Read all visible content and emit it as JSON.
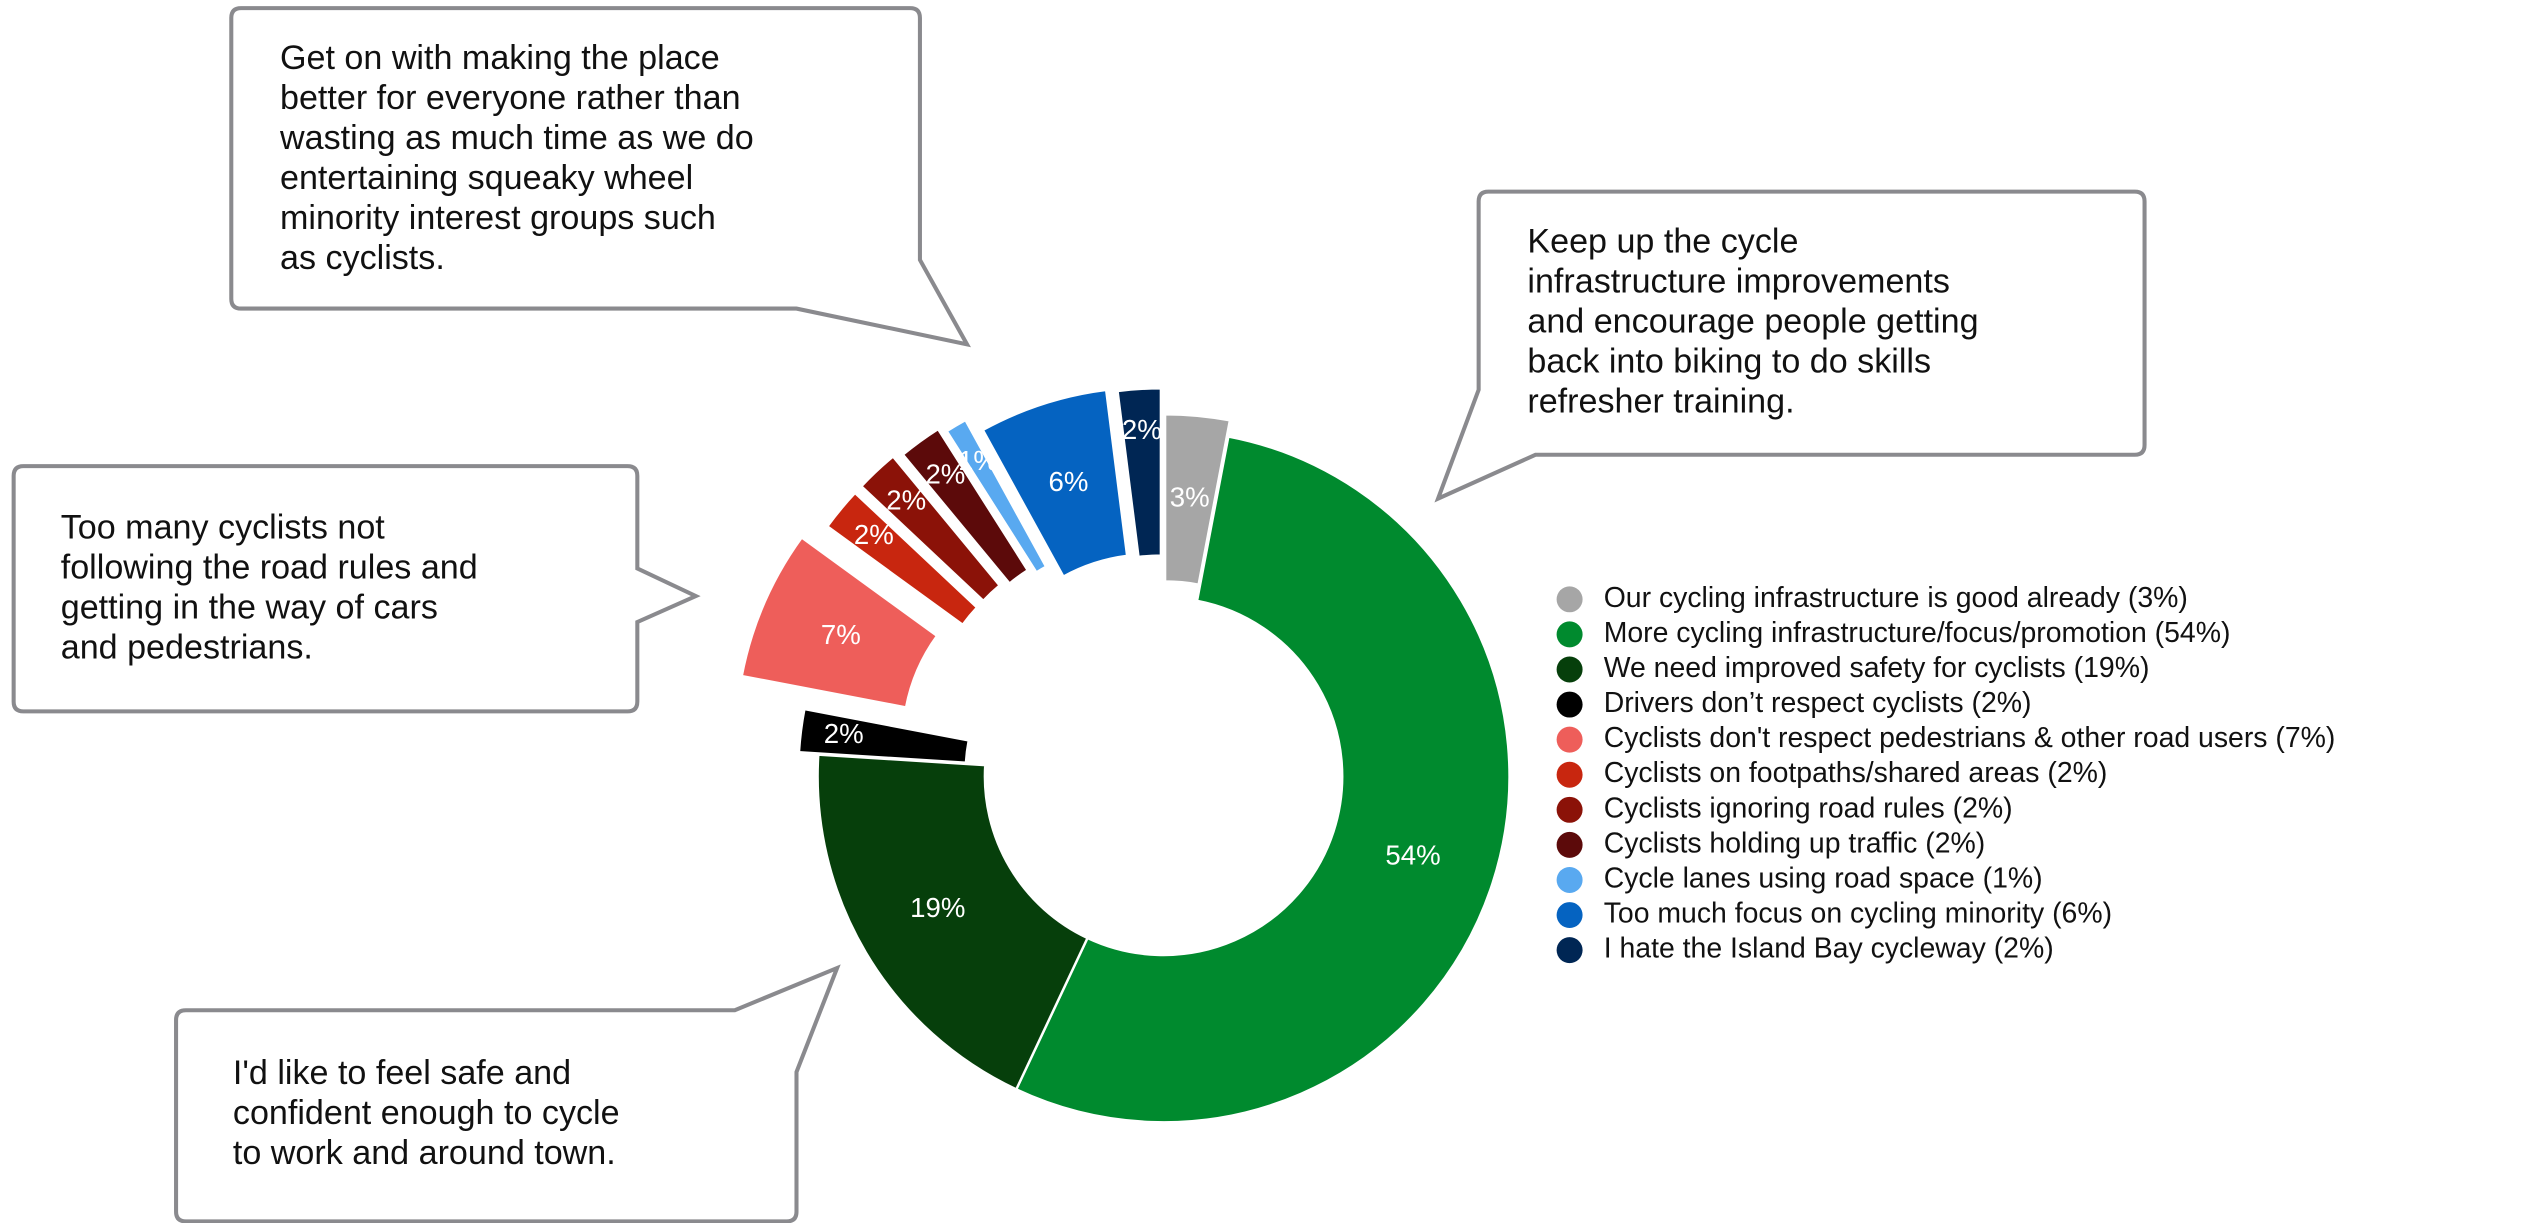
{
  "chart_data": {
    "type": "donut",
    "categories": [
      "Our cycling infrastructure is good already (3%)",
      "More cycling infrastructure/focus/promotion (54%)",
      "We need improved safety for cyclists (19%)",
      "Drivers don’t respect cyclists (2%)",
      "Cyclists don't respect pedestrians & other road users (7%)",
      "Cyclists on footpaths/shared areas (2%)",
      "Cyclists ignoring road rules (2%)",
      "Cyclists holding up traffic (2%)",
      "Cycle lanes using road space (1%)",
      "Too much focus on cycling minority (6%)",
      "I hate the Island Bay cycleway (2%)"
    ],
    "values": [
      3,
      54,
      19,
      2,
      7,
      2,
      2,
      2,
      1,
      6,
      2
    ],
    "value_labels": [
      "3%",
      "54%",
      "19%",
      "2%",
      "7%",
      "2%",
      "2%",
      "2%",
      "1%",
      "6%",
      "2%"
    ],
    "colors": [
      "#a6a6a6",
      "#008a2e",
      "#063f0b",
      "#000000",
      "#ee5e5a",
      "#c8260f",
      "#8b1208",
      "#5c0a0a",
      "#59a9f0",
      "#0563c1",
      "#002654"
    ],
    "legend": "right",
    "annotations": [
      {
        "lines": [
          "Get on with making the place",
          "better for everyone rather than",
          "wasting as much time as we do",
          "entertaining squeaky wheel",
          "minority interest groups such",
          "as cyclists."
        ]
      },
      {
        "lines": [
          "Keep up the cycle",
          "infrastructure improvements",
          "and encourage people getting",
          "back into biking to do skills",
          "refresher training."
        ]
      },
      {
        "lines": [
          "Too many cyclists not",
          "following the road rules and",
          "getting in the way of cars",
          "and pedestrians."
        ]
      },
      {
        "lines": [
          "I'd like to feel safe and",
          "confident enough to cycle",
          "to work and around town."
        ]
      }
    ]
  }
}
